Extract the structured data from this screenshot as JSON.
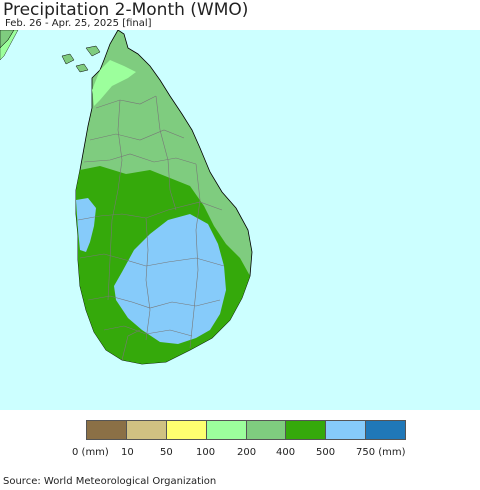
{
  "title": "Precipitation 2-Month (WMO)",
  "subtitle": "Feb. 26 - Apr. 25, 2025 [final]",
  "map": {
    "ocean_color": "#ccffff",
    "land_colors": [
      "#00000000"
    ]
  },
  "legend": {
    "items": [
      {
        "label": "0 (mm)",
        "color": "#8b7046"
      },
      {
        "label": "10",
        "color": "#d0c182"
      },
      {
        "label": "50",
        "color": "#ffff70"
      },
      {
        "label": "100",
        "color": "#9cff9c"
      },
      {
        "label": "200",
        "color": "#7fcc7f"
      },
      {
        "label": "400",
        "color": "#35a90b"
      },
      {
        "label": "500",
        "color": "#86cbfa"
      },
      {
        "label": "750 (mm)",
        "color": "#2078b8"
      }
    ]
  },
  "source": "Source: World Meteorological Organization"
}
